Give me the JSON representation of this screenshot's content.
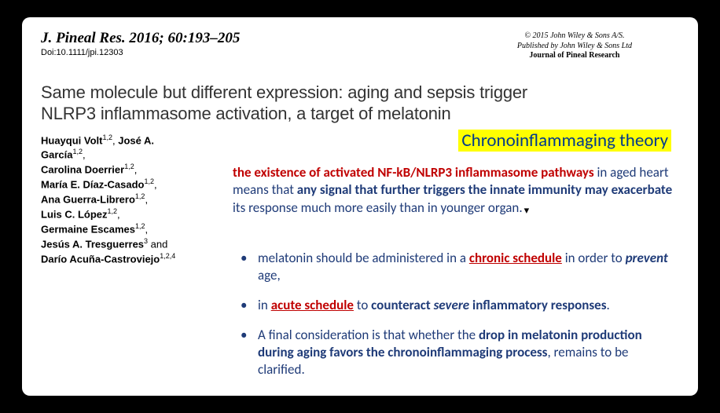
{
  "header": {
    "journal_cite": "J. Pineal Res. 2016; 60:193–205",
    "doi": "Doi:10.1111/jpi.12303",
    "copyright": "© 2015 John Wiley & Sons A/S.",
    "publisher_line": "Published by John Wiley & Sons Ltd",
    "journal_name": "Journal of Pineal Research"
  },
  "title": {
    "line1": "Same molecule but different expression: aging and sepsis trigger",
    "line2": "NLRP3 inflammasome activation, a target of melatonin"
  },
  "authors": [
    {
      "name": "Huayqui Volt",
      "aff": "1,2",
      "trail": ", "
    },
    {
      "name": "José A. García",
      "aff": "1,2",
      "trail": ","
    },
    {
      "name": "Carolina Doerrier",
      "aff": "1,2",
      "trail": ","
    },
    {
      "name": "María E. Díaz-Casado",
      "aff": "1,2",
      "trail": ","
    },
    {
      "name": "Ana Guerra-Librero",
      "aff": "1,2",
      "trail": ","
    },
    {
      "name": "Luis C. López",
      "aff": "1,2",
      "trail": ","
    },
    {
      "name": "Germaine Escames",
      "aff": "1,2",
      "trail": ","
    },
    {
      "name": "Jesús A. Tresguerres",
      "aff": "3",
      "trail": " and"
    },
    {
      "name": "Darío Acuña-Castroviejo",
      "aff": "1,2,4",
      "trail": ""
    }
  ],
  "theory_label": "Chronoinflammaging theory",
  "paragraph": {
    "red": "the existence of activated NF-kB/NLRP3 inflammasome pathways",
    "mid_plain": " in aged heart means that ",
    "bold2": "any signal that further triggers the innate immunity may exacerbate",
    "tail": " its response much more easily than in younger organ."
  },
  "bullets": {
    "b1_pre": "melatonin should be administered in a ",
    "b1_ru": "chronic schedule",
    "b1_mid": " in order to ",
    "b1_bi": "prevent",
    "b1_post": " age,",
    "b2_pre": "in ",
    "b2_ru": "acute schedule",
    "b2_mid": " to ",
    "b2_b1": "counteract ",
    "b2_bi": "severe",
    "b2_b2": " inflammatory responses",
    "b2_post": ".",
    "b3_pre": "A final consideration is that whether the ",
    "b3_b": "drop in melatonin production during aging favors the chronoinflammaging process",
    "b3_post": ", remains to be clarified."
  },
  "colors": {
    "background": "#000000",
    "card": "#ffffff",
    "text_navy": "#1f3b78",
    "text_red": "#c00000",
    "highlight": "#ffff00"
  }
}
